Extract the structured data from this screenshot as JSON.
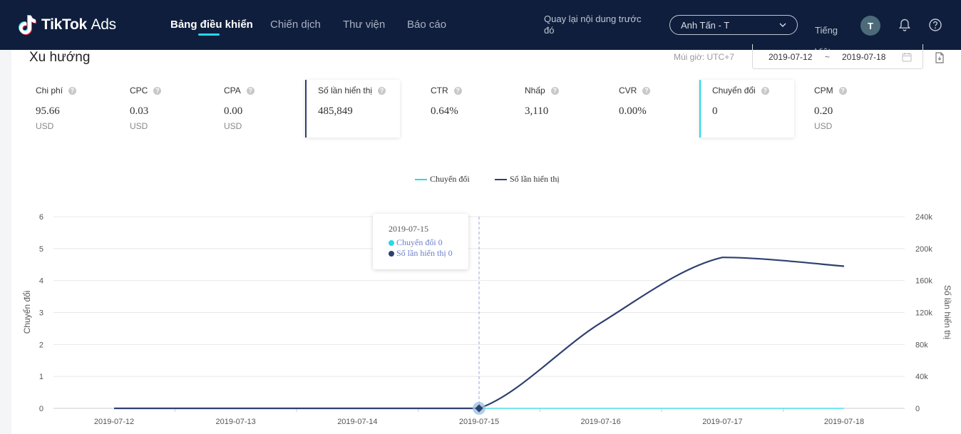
{
  "header": {
    "logo_brand": "TikTok",
    "logo_suffix": "Ads",
    "nav": [
      "Bảng điều khiển",
      "Chiến dịch",
      "Thư viện",
      "Báo cáo"
    ],
    "back_link": "Quay lại nội dung trước đó",
    "account": "Anh Tấn - T",
    "language": "Tiếng Việt",
    "avatar_initial": "T"
  },
  "section": {
    "title": "Xu hướng",
    "timezone": "Múi giờ: UTC+7",
    "date_start": "2019-07-12",
    "date_sep": "~",
    "date_end": "2019-07-18"
  },
  "metrics": [
    {
      "label": "Chi phí",
      "value": "95.66",
      "unit": "USD",
      "selected": false
    },
    {
      "label": "CPC",
      "value": "0.03",
      "unit": "USD",
      "selected": false
    },
    {
      "label": "CPA",
      "value": "0.00",
      "unit": "USD",
      "selected": false
    },
    {
      "label": "Số lần hiển thị",
      "value": "485,849",
      "unit": "",
      "selected": true
    },
    {
      "label": "CTR",
      "value": "0.64%",
      "unit": "",
      "selected": false
    },
    {
      "label": "Nhấp",
      "value": "3,110",
      "unit": "",
      "selected": false
    },
    {
      "label": "CVR",
      "value": "0.00%",
      "unit": "",
      "selected": false
    },
    {
      "label": "Chuyển đổi",
      "value": "0",
      "unit": "",
      "selected": true
    },
    {
      "label": "CPM",
      "value": "0.20",
      "unit": "USD",
      "selected": false
    }
  ],
  "tooltip": {
    "date": "2019-07-15",
    "line1": "Chuyển đổi 0",
    "line2": "Số lần hiển thị 0"
  },
  "colors": {
    "navy": "#2e4070",
    "cyan": "#25d9e9",
    "topbar": "#0f1e3c"
  },
  "chart_data": {
    "type": "line",
    "x": [
      "2019-07-12",
      "2019-07-13",
      "2019-07-14",
      "2019-07-15",
      "2019-07-16",
      "2019-07-17",
      "2019-07-18"
    ],
    "series": [
      {
        "name": "Chuyển đổi",
        "axis": "left",
        "color": "#25d9e9",
        "values": [
          0,
          0,
          0,
          0,
          0,
          0,
          0
        ]
      },
      {
        "name": "Số lần hiển thị",
        "axis": "right",
        "color": "#2e4070",
        "values": [
          0,
          0,
          0,
          0,
          107000,
          189000,
          178000
        ]
      }
    ],
    "ylabel": "Chuyển đổi",
    "y2label": "Số lần hiển thị",
    "ylim": [
      0,
      6
    ],
    "y2lim": [
      0,
      240000
    ],
    "yticks": [
      "0",
      "1",
      "2",
      "3",
      "4",
      "5",
      "6"
    ],
    "y2ticks": [
      "0",
      "40k",
      "80k",
      "120k",
      "160k",
      "200k",
      "240k"
    ],
    "legend_position": "top-center",
    "grid": true
  }
}
